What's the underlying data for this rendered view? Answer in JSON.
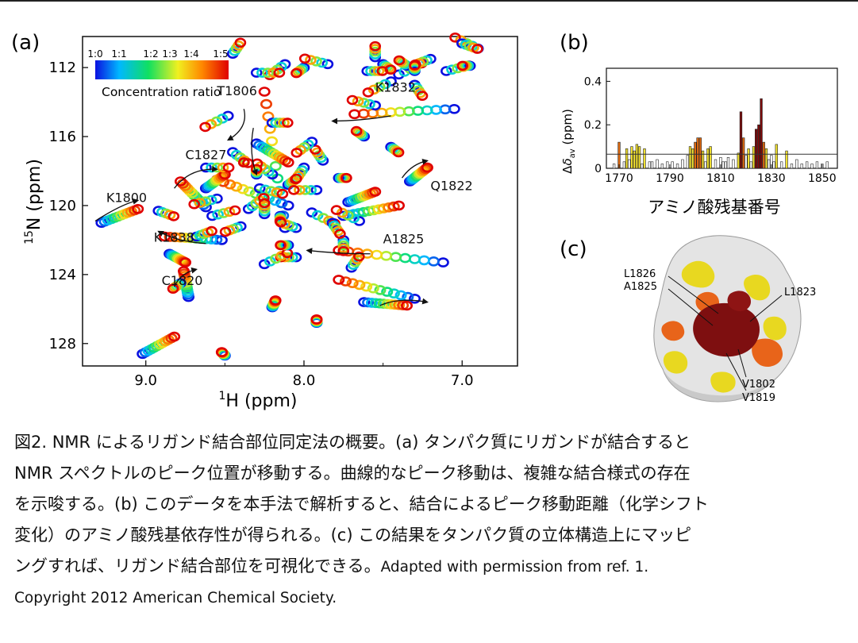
{
  "figure": {
    "panel_a": {
      "label": "(a)",
      "colorbar": {
        "ticks": [
          "1:0",
          "1:1",
          "1:2",
          "1:3",
          "1:4",
          "1:5"
        ],
        "title": "Concentration ratio"
      }
    },
    "panel_b": {
      "label": "(b)"
    },
    "panel_c": {
      "label": "(c)",
      "residue_labels": [
        "L1826",
        "A1825",
        "L1823",
        "V1802",
        "V1819"
      ]
    }
  },
  "chart_data": [
    {
      "type": "scatter",
      "subtype": "2D NMR spectrum (HSQC titration)",
      "xlabel": "¹H (ppm)",
      "ylabel": "¹⁵N (ppm)",
      "xlim": [
        9.4,
        6.65
      ],
      "ylim": [
        129.3,
        110.2
      ],
      "x_ticks": [
        "9.0",
        "8.0",
        "7.0"
      ],
      "y_ticks": [
        "112",
        "116",
        "120",
        "124",
        "128"
      ],
      "colorbar_title": "Concentration ratio",
      "annotations": [
        {
          "text": "T1806",
          "x": 8.55,
          "y": 113.6
        },
        {
          "text": "K1832",
          "x": 7.55,
          "y": 113.4
        },
        {
          "text": "C1827",
          "x": 8.75,
          "y": 117.3
        },
        {
          "text": "Q1822",
          "x": 7.2,
          "y": 119.1
        },
        {
          "text": "K1800",
          "x": 9.25,
          "y": 119.8
        },
        {
          "text": "K1838",
          "x": 8.95,
          "y": 122.1
        },
        {
          "text": "A1825",
          "x": 7.5,
          "y": 122.2
        },
        {
          "text": "C1820",
          "x": 8.9,
          "y": 124.6
        }
      ],
      "trajectories": [
        {
          "start": [
            9.28,
            121.0
          ],
          "end": [
            9.05,
            120.2
          ]
        },
        {
          "start": [
            8.12,
            121.3
          ],
          "end": [
            8.25,
            113.4
          ]
        },
        {
          "start": [
            7.05,
            114.4
          ],
          "end": [
            7.68,
            114.7
          ]
        },
        {
          "start": [
            8.62,
            120.1
          ],
          "end": [
            8.78,
            118.6
          ]
        },
        {
          "start": [
            7.33,
            118.6
          ],
          "end": [
            7.22,
            117.8
          ]
        },
        {
          "start": [
            8.52,
            122.0
          ],
          "end": [
            8.88,
            121.8
          ]
        },
        {
          "start": [
            7.12,
            123.3
          ],
          "end": [
            7.78,
            122.6
          ]
        },
        {
          "start": [
            8.73,
            125.3
          ],
          "end": [
            8.76,
            123.8
          ]
        },
        {
          "start": [
            7.3,
            125.4
          ],
          "end": [
            7.78,
            124.3
          ]
        },
        {
          "start": [
            7.62,
            125.6
          ],
          "end": [
            7.35,
            125.8
          ]
        },
        {
          "start": [
            9.02,
            128.6
          ],
          "end": [
            8.82,
            127.6
          ]
        },
        {
          "start": [
            8.5,
            128.7
          ],
          "end": [
            8.52,
            128.5
          ]
        },
        {
          "start": [
            8.1,
            120.0
          ],
          "end": [
            8.55,
            118.5
          ]
        },
        {
          "start": [
            7.75,
            120.6
          ],
          "end": [
            7.4,
            120.0
          ]
        },
        {
          "start": [
            8.62,
            119.0
          ],
          "end": [
            8.5,
            118.2
          ]
        },
        {
          "start": [
            8.3,
            116.4
          ],
          "end": [
            8.1,
            117.5
          ]
        },
        {
          "start": [
            7.72,
            119.8
          ],
          "end": [
            7.55,
            119.2
          ]
        },
        {
          "start": [
            8.85,
            122.8
          ],
          "end": [
            8.75,
            123.3
          ]
        },
        {
          "start": [
            8.2,
            125.9
          ],
          "end": [
            8.18,
            125.5
          ]
        },
        {
          "start": [
            7.92,
            126.8
          ],
          "end": [
            7.92,
            126.6
          ]
        }
      ],
      "dense_region_peaks": [
        [
          7.4,
          112.4
        ],
        [
          7.5,
          111.8
        ],
        [
          7.35,
          111.9
        ],
        [
          7.45,
          112.8
        ],
        [
          7.6,
          112.2
        ],
        [
          7.55,
          111.4
        ],
        [
          7.2,
          111.5
        ],
        [
          7.1,
          112.2
        ],
        [
          7.3,
          113.0
        ],
        [
          6.95,
          111.9
        ],
        [
          6.9,
          110.9
        ],
        [
          7.0,
          110.6
        ],
        [
          7.3,
          112.2
        ],
        [
          8.12,
          111.8
        ],
        [
          8.3,
          112.3
        ],
        [
          8.45,
          111.2
        ],
        [
          8.0,
          112.0
        ],
        [
          7.85,
          111.8
        ],
        [
          8.45,
          116.9
        ],
        [
          8.38,
          117.5
        ],
        [
          8.2,
          118.2
        ],
        [
          8.28,
          119.0
        ],
        [
          8.1,
          118.8
        ],
        [
          8.0,
          117.8
        ],
        [
          7.92,
          119.1
        ],
        [
          8.35,
          120.2
        ],
        [
          8.15,
          120.6
        ],
        [
          8.05,
          121.3
        ],
        [
          7.95,
          120.4
        ],
        [
          7.78,
          118.4
        ],
        [
          7.88,
          117.4
        ],
        [
          8.55,
          119.6
        ],
        [
          8.68,
          121.8
        ],
        [
          7.75,
          122.0
        ],
        [
          8.05,
          123.0
        ],
        [
          8.25,
          123.4
        ],
        [
          7.45,
          116.6
        ],
        [
          7.62,
          116.0
        ],
        [
          8.48,
          114.8
        ],
        [
          8.2,
          115.2
        ],
        [
          8.25,
          120.5
        ],
        [
          8.4,
          121.2
        ],
        [
          8.58,
          120.6
        ],
        [
          7.82,
          121.0
        ],
        [
          8.1,
          122.3
        ],
        [
          7.65,
          120.9
        ],
        [
          8.92,
          120.3
        ],
        [
          8.3,
          118.2
        ],
        [
          7.95,
          116.3
        ],
        [
          8.62,
          117.8
        ],
        [
          7.7,
          123.6
        ],
        [
          8.78,
          124.5
        ],
        [
          7.55,
          114.2
        ]
      ]
    },
    {
      "type": "bar",
      "xlabel": "アミノ酸残基番号",
      "ylabel": "Δδav (ppm)",
      "x_ticks": [
        "1770",
        "1790",
        "1810",
        "1830",
        "1850"
      ],
      "y_ticks": [
        "0",
        "0.2",
        "0.4"
      ],
      "xlim": [
        1765,
        1856
      ],
      "ylim": [
        0,
        0.46
      ],
      "threshold_line": 0.065,
      "residues": [
        1768,
        1770,
        1772,
        1773,
        1774,
        1775,
        1776,
        1777,
        1778,
        1779,
        1780,
        1782,
        1783,
        1785,
        1787,
        1789,
        1791,
        1793,
        1795,
        1797,
        1798,
        1799,
        1800,
        1801,
        1802,
        1803,
        1804,
        1805,
        1806,
        1808,
        1810,
        1811,
        1812,
        1813,
        1815,
        1817,
        1818,
        1819,
        1820,
        1821,
        1822,
        1823,
        1824,
        1825,
        1826,
        1827,
        1828,
        1829,
        1830,
        1831,
        1832,
        1834,
        1836,
        1838,
        1840,
        1842,
        1844,
        1846,
        1848,
        1850,
        1852
      ],
      "values": [
        0.02,
        0.12,
        0.03,
        0.09,
        0.04,
        0.1,
        0.08,
        0.11,
        0.1,
        0.02,
        0.09,
        0.03,
        0.03,
        0.04,
        0.02,
        0.03,
        0.03,
        0.02,
        0.04,
        0.06,
        0.1,
        0.09,
        0.12,
        0.14,
        0.14,
        0.08,
        0.03,
        0.09,
        0.1,
        0.04,
        0.05,
        0.03,
        0.03,
        0.05,
        0.04,
        0.07,
        0.26,
        0.14,
        0.06,
        0.09,
        0.03,
        0.1,
        0.18,
        0.2,
        0.32,
        0.12,
        0.09,
        0.04,
        0.06,
        0.03,
        0.11,
        0.03,
        0.08,
        0.02,
        0.04,
        0.02,
        0.03,
        0.02,
        0.03,
        0.02,
        0.03
      ]
    }
  ],
  "caption": {
    "line1": "図2. NMR によるリガンド結合部位同定法の概要。(a) タンパク質にリガンドが結合すると",
    "line2": "NMR スペクトルのピーク位置が移動する。曲線的なピーク移動は、複雑な結合様式の存在",
    "line3": "を示唆する。(b) このデータを本手法で解析すると、結合によるピーク移動距離（化学シフト",
    "line4": "変化）のアミノ酸残基依存性が得られる。(c) この結果をタンパク質の立体構造上にマッピ",
    "line5a": "ングすれば、リガンド結合部位を可視化できる。",
    "line5b": "Adapted with permission from ref. 1.",
    "line6": "Copyright 2012 American Chemical Society."
  },
  "colors": {
    "colorbar_stops": [
      "#0a10e0",
      "#00c8ff",
      "#10e060",
      "#f0f020",
      "#ff8800",
      "#e00000"
    ],
    "bar_high": "#7a0a0a",
    "bar_mid": "#e06a10",
    "bar_low": "#f0e030",
    "bar_none": "#ffffff"
  }
}
